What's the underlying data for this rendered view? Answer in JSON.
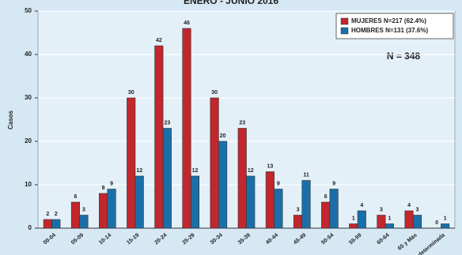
{
  "chart_data": {
    "type": "bar",
    "title": "ENERO - JUNIO 2016",
    "y_label": "Casos",
    "annotation": "N = 348",
    "categories": [
      "00-04",
      "05-09",
      "10-14",
      "15-19",
      "20-24",
      "25-29",
      "30-34",
      "35-39",
      "40-44",
      "45-49",
      "50-54",
      "55-59",
      "60-64",
      "65 y Más",
      "Indeterminada"
    ],
    "series": [
      {
        "name": "MUJERES N=217 (62.4%)",
        "color": "#c1272d",
        "values": [
          2,
          6,
          8,
          30,
          42,
          46,
          30,
          23,
          13,
          3,
          6,
          1,
          3,
          4,
          0
        ]
      },
      {
        "name": "HOMBRES N=131 (37.6%)",
        "color": "#1b6fa8",
        "values": [
          2,
          3,
          9,
          12,
          23,
          12,
          20,
          12,
          9,
          11,
          9,
          4,
          1,
          3,
          1
        ]
      }
    ],
    "ylim": [
      0,
      50
    ],
    "yticks": [
      0,
      10,
      20,
      30,
      40,
      50
    ],
    "grid": true,
    "legend": "top-right"
  }
}
